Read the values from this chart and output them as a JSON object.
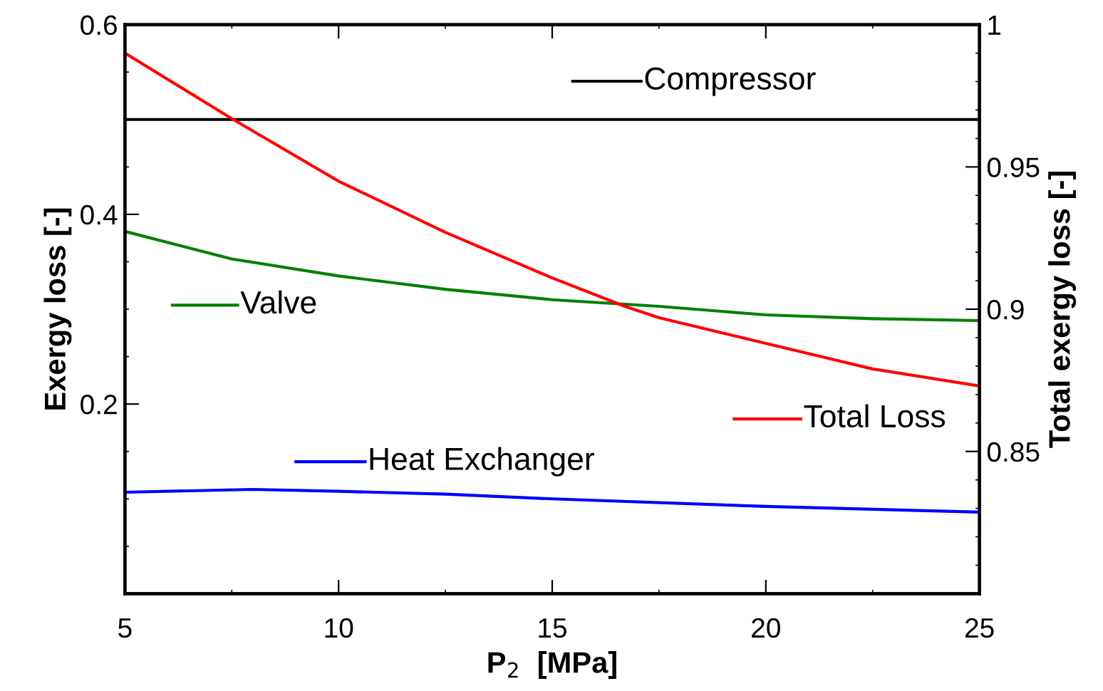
{
  "chart_data": {
    "type": "line",
    "xlabel": "P$_{2}$  [MPa]",
    "ylabel": "Exergy loss [-]",
    "y2label": "Total exergy loss [-]",
    "xlim": [
      5,
      25
    ],
    "xticks": [
      5,
      10,
      15,
      20,
      25
    ],
    "ylim": [
      0,
      0.6
    ],
    "yticks": [
      0.2,
      0.4,
      0.6
    ],
    "y2lim": [
      0.8,
      1
    ],
    "y2ticks": [
      0.85,
      0.9,
      0.95,
      1
    ],
    "grid": false,
    "line_style": "solid",
    "marker": "none",
    "legend": "center",
    "series": [
      {
        "name": "Compressor",
        "color": "#000000",
        "x": [
          5,
          25
        ],
        "values": [
          0.5,
          0.5
        ]
      },
      {
        "name": "Valve",
        "color": "#008000",
        "x": [
          5,
          7.5,
          10,
          12.5,
          15,
          17.5,
          20,
          22.5,
          25
        ],
        "values": [
          0.382,
          0.353,
          0.335,
          0.321,
          0.31,
          0.303,
          0.294,
          0.29,
          0.288
        ]
      },
      {
        "name": "Heat Exchanger",
        "color": "#0000ff",
        "x": [
          5,
          8,
          10,
          12.5,
          15,
          20,
          25
        ],
        "values": [
          0.107,
          0.11,
          0.108,
          0.105,
          0.1,
          0.092,
          0.086
        ]
      },
      {
        "name": "Total Loss",
        "color": "#ff0000",
        "axis": "y2",
        "x": [
          5,
          7.5,
          10,
          12.5,
          15,
          16.7,
          17.5,
          20,
          22.5,
          25
        ],
        "values": [
          0.99,
          0.967,
          0.945,
          0.927,
          0.911,
          0.901,
          0.897,
          0.888,
          0.879,
          0.873
        ]
      }
    ]
  }
}
